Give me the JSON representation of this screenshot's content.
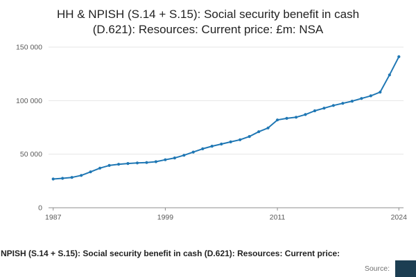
{
  "header": {
    "title": "HH & NPISH (S.14 + S.15): Social security benefit in cash (D.621): Resources: Current price: £m: NSA"
  },
  "footer": {
    "caption": "NPISH (S.14 + S.15): Social security benefit in cash (D.621): Resources: Current price:",
    "source_label": "Source:",
    "badge_color": "#1c3e52"
  },
  "chart_data": {
    "type": "line",
    "title": "HH & NPISH (S.14 + S.15): Social security benefit in cash (D.621): Resources: Current price: £m: NSA",
    "x": [
      1987,
      1988,
      1989,
      1990,
      1991,
      1992,
      1993,
      1994,
      1995,
      1996,
      1997,
      1998,
      1999,
      2000,
      2001,
      2002,
      2003,
      2004,
      2005,
      2006,
      2007,
      2008,
      2009,
      2010,
      2011,
      2012,
      2013,
      2014,
      2015,
      2016,
      2017,
      2018,
      2019,
      2020,
      2021,
      2022,
      2023,
      2024
    ],
    "series": [
      {
        "name": "Social security benefit in cash (D.621), £m",
        "values": [
          26800,
          27500,
          28300,
          30200,
          33500,
          37000,
          39500,
          40600,
          41300,
          41800,
          42200,
          43000,
          44800,
          46500,
          49000,
          52000,
          55000,
          57500,
          59500,
          61500,
          63500,
          66500,
          71000,
          74500,
          82000,
          83500,
          84500,
          87000,
          90500,
          93000,
          95500,
          97500,
          99500,
          102000,
          104500,
          108000,
          124000,
          141000
        ]
      }
    ],
    "xlim": [
      1986.5,
      2024.5
    ],
    "ylim": [
      0,
      150000
    ],
    "xticks": [
      1987,
      1999,
      2011,
      2024
    ],
    "xtick_labels": [
      "1987",
      "1999",
      "2011",
      "2024"
    ],
    "yticks": [
      0,
      50000,
      100000,
      150000
    ],
    "ytick_labels": [
      "0",
      "50 000",
      "100 000",
      "150 000"
    ],
    "line_color": "#1f77b4",
    "grid_color": "#e6e6e6",
    "axis_color": "#8c8c8c",
    "tick_label_color": "#595959",
    "grid": true,
    "markers": true,
    "legend": "none"
  }
}
